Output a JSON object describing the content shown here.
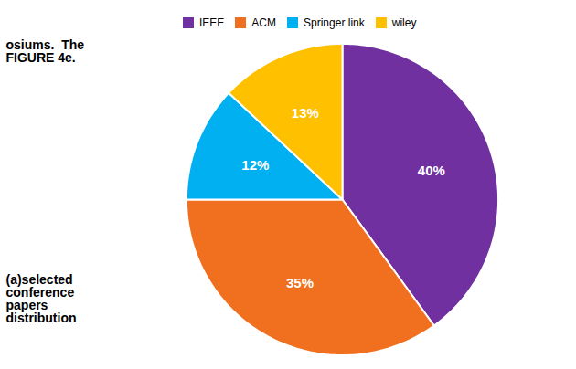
{
  "chart_data": {
    "type": "pie",
    "title": "osiums.  The\nFIGURE 4e.",
    "annotations": [
      "(a)selected\nconference\npapers\ndistribution"
    ],
    "categories": [
      "IEEE",
      "ACM",
      "Springer link",
      "wiley"
    ],
    "values": [
      40,
      35,
      12,
      13
    ],
    "value_labels": [
      "40%",
      "35%",
      "12%",
      "13%"
    ],
    "colors": [
      "#7030a0",
      "#f07020",
      "#00b0f0",
      "#ffc000"
    ],
    "data_labels": true,
    "legend": "top"
  }
}
